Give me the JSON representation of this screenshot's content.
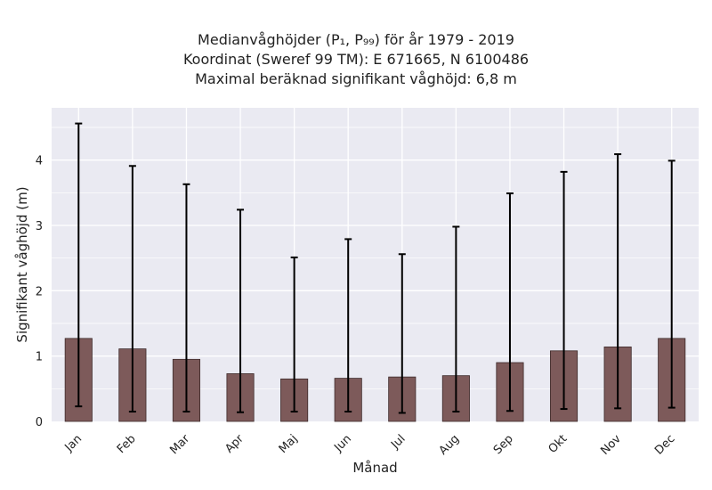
{
  "chart_data": {
    "type": "bar",
    "title_lines": [
      "Medianvåghöjder (P₁, P₉₉) för år 1979 - 2019",
      "Koordinat (Sweref 99 TM): E 671665, N 6100486",
      "Maximal beräknad signifikant våghöjd: 6,8 m"
    ],
    "xlabel": "Månad",
    "ylabel": "Signifikant våghöjd (m)",
    "ylim": [
      0,
      4.8
    ],
    "yticks": [
      0,
      1,
      2,
      3,
      4
    ],
    "grid": true,
    "categories": [
      "Jan",
      "Feb",
      "Mar",
      "Apr",
      "Maj",
      "Jun",
      "Jul",
      "Aug",
      "Sep",
      "Okt",
      "Nov",
      "Dec"
    ],
    "values": [
      1.27,
      1.11,
      0.95,
      0.73,
      0.65,
      0.66,
      0.68,
      0.7,
      0.9,
      1.08,
      1.14,
      1.27
    ],
    "err_low": [
      0.23,
      0.15,
      0.15,
      0.14,
      0.15,
      0.15,
      0.13,
      0.15,
      0.16,
      0.19,
      0.2,
      0.21
    ],
    "err_high": [
      4.56,
      3.91,
      3.63,
      3.24,
      2.51,
      2.79,
      2.56,
      2.98,
      3.49,
      3.82,
      4.09,
      3.99
    ],
    "bar_color": "#7d5a5a",
    "error_color": "#000000",
    "plot_background": "#eaeaf2"
  }
}
